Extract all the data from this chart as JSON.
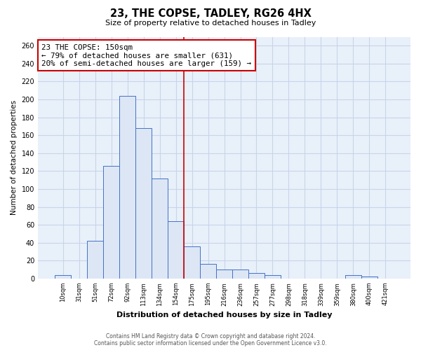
{
  "title": "23, THE COPSE, TADLEY, RG26 4HX",
  "subtitle": "Size of property relative to detached houses in Tadley",
  "xlabel": "Distribution of detached houses by size in Tadley",
  "ylabel": "Number of detached properties",
  "bar_labels": [
    "10sqm",
    "31sqm",
    "51sqm",
    "72sqm",
    "92sqm",
    "113sqm",
    "134sqm",
    "154sqm",
    "175sqm",
    "195sqm",
    "216sqm",
    "236sqm",
    "257sqm",
    "277sqm",
    "298sqm",
    "318sqm",
    "339sqm",
    "359sqm",
    "380sqm",
    "400sqm",
    "421sqm"
  ],
  "bar_values": [
    4,
    0,
    42,
    126,
    204,
    168,
    112,
    64,
    36,
    16,
    10,
    10,
    6,
    4,
    0,
    0,
    0,
    0,
    4,
    2,
    0
  ],
  "bar_color": "#dce6f5",
  "bar_edge_color": "#4472c4",
  "vline_x": 7.5,
  "vline_color": "#cc0000",
  "annotation_text": "23 THE COPSE: 150sqm\n← 79% of detached houses are smaller (631)\n20% of semi-detached houses are larger (159) →",
  "annotation_box_color": "#ffffff",
  "annotation_box_edge": "#cc0000",
  "ylim": [
    0,
    270
  ],
  "yticks": [
    0,
    20,
    40,
    60,
    80,
    100,
    120,
    140,
    160,
    180,
    200,
    220,
    240,
    260
  ],
  "footer_line1": "Contains HM Land Registry data © Crown copyright and database right 2024.",
  "footer_line2": "Contains public sector information licensed under the Open Government Licence v3.0.",
  "bg_color": "#ffffff",
  "grid_color": "#c8d4e8"
}
